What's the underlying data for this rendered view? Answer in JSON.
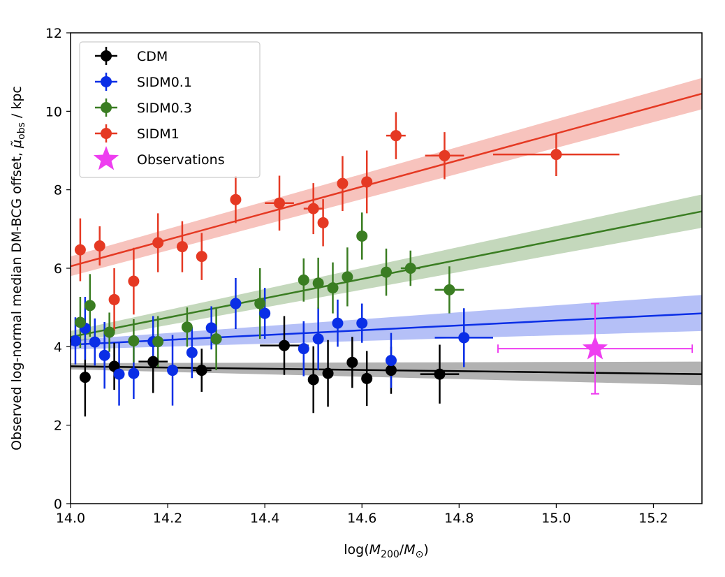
{
  "chart_data": {
    "type": "scatter",
    "xlabel": "log(M200/M⊙)",
    "ylabel": "Observed log-normal median DM-BCG offset, μ̃obs / kpc",
    "xlim": [
      14.0,
      15.3
    ],
    "ylim": [
      0,
      12
    ],
    "x_ticks": [
      "14.0",
      "14.2",
      "14.4",
      "14.6",
      "14.8",
      "15.0",
      "15.2"
    ],
    "y_ticks": [
      "0",
      "2",
      "4",
      "6",
      "8",
      "10",
      "12"
    ],
    "legend_position": "upper-left",
    "grid": false,
    "series": [
      {
        "name": "CDM",
        "color": "#000000",
        "fit_line": {
          "x": [
            14.0,
            15.3
          ],
          "y": [
            3.5,
            3.3
          ]
        },
        "fit_band": {
          "lower": [
            3.42,
            3.02
          ],
          "upper": [
            3.58,
            3.62
          ]
        },
        "points": [
          {
            "x": 14.03,
            "y": 3.22,
            "xerr": 0.01,
            "yerr": 1.0
          },
          {
            "x": 14.09,
            "y": 3.5,
            "xerr": 0.01,
            "yerr": 0.6
          },
          {
            "x": 14.17,
            "y": 3.62,
            "xerr": 0.03,
            "yerr": 0.8
          },
          {
            "x": 14.27,
            "y": 3.4,
            "xerr": 0.02,
            "yerr": 0.55
          },
          {
            "x": 14.44,
            "y": 4.03,
            "xerr": 0.05,
            "yerr": 0.75
          },
          {
            "x": 14.5,
            "y": 3.16,
            "xerr": 0.01,
            "yerr": 0.85
          },
          {
            "x": 14.53,
            "y": 3.32,
            "xerr": 0.01,
            "yerr": 0.85
          },
          {
            "x": 14.58,
            "y": 3.6,
            "xerr": 0.01,
            "yerr": 0.65
          },
          {
            "x": 14.61,
            "y": 3.19,
            "xerr": 0.01,
            "yerr": 0.7
          },
          {
            "x": 14.66,
            "y": 3.4,
            "xerr": 0.01,
            "yerr": 0.6
          },
          {
            "x": 14.76,
            "y": 3.3,
            "xerr": 0.04,
            "yerr": 0.75
          }
        ]
      },
      {
        "name": "SIDM0.1",
        "color": "#0a2ee6",
        "fit_line": {
          "x": [
            14.0,
            15.3
          ],
          "y": [
            4.05,
            4.85
          ]
        },
        "fit_band": {
          "lower": [
            3.93,
            4.4
          ],
          "upper": [
            4.17,
            5.32
          ]
        },
        "points": [
          {
            "x": 14.01,
            "y": 4.15,
            "xerr": 0.01,
            "yerr": 0.6
          },
          {
            "x": 14.03,
            "y": 4.47,
            "xerr": 0.01,
            "yerr": 0.8
          },
          {
            "x": 14.05,
            "y": 4.12,
            "xerr": 0.01,
            "yerr": 0.6
          },
          {
            "x": 14.07,
            "y": 3.78,
            "xerr": 0.01,
            "yerr": 0.85
          },
          {
            "x": 14.1,
            "y": 3.3,
            "xerr": 0.01,
            "yerr": 0.8
          },
          {
            "x": 14.13,
            "y": 3.32,
            "xerr": 0.01,
            "yerr": 0.65
          },
          {
            "x": 14.17,
            "y": 4.13,
            "xerr": 0.01,
            "yerr": 0.65
          },
          {
            "x": 14.21,
            "y": 3.4,
            "xerr": 0.01,
            "yerr": 0.9
          },
          {
            "x": 14.25,
            "y": 3.85,
            "xerr": 0.01,
            "yerr": 0.65
          },
          {
            "x": 14.29,
            "y": 4.48,
            "xerr": 0.01,
            "yerr": 0.55
          },
          {
            "x": 14.34,
            "y": 5.1,
            "xerr": 0.01,
            "yerr": 0.65
          },
          {
            "x": 14.4,
            "y": 4.85,
            "xerr": 0.01,
            "yerr": 0.65
          },
          {
            "x": 14.48,
            "y": 3.95,
            "xerr": 0.01,
            "yerr": 0.7
          },
          {
            "x": 14.51,
            "y": 4.2,
            "xerr": 0.01,
            "yerr": 0.8
          },
          {
            "x": 14.55,
            "y": 4.6,
            "xerr": 0.01,
            "yerr": 0.6
          },
          {
            "x": 14.6,
            "y": 4.6,
            "xerr": 0.01,
            "yerr": 0.5
          },
          {
            "x": 14.66,
            "y": 3.65,
            "xerr": 0.01,
            "yerr": 0.7
          },
          {
            "x": 14.81,
            "y": 4.23,
            "xerr": 0.06,
            "yerr": 0.75
          }
        ]
      },
      {
        "name": "SIDM0.3",
        "color": "#3a7d22",
        "fit_line": {
          "x": [
            14.0,
            15.3
          ],
          "y": [
            4.25,
            7.45
          ]
        },
        "fit_band": {
          "lower": [
            4.1,
            7.03
          ],
          "upper": [
            4.4,
            7.88
          ]
        },
        "points": [
          {
            "x": 14.02,
            "y": 4.62,
            "xerr": 0.01,
            "yerr": 0.65
          },
          {
            "x": 14.04,
            "y": 5.05,
            "xerr": 0.01,
            "yerr": 0.8
          },
          {
            "x": 14.08,
            "y": 4.37,
            "xerr": 0.01,
            "yerr": 0.5
          },
          {
            "x": 14.13,
            "y": 4.15,
            "xerr": 0.01,
            "yerr": 0.55
          },
          {
            "x": 14.18,
            "y": 4.13,
            "xerr": 0.01,
            "yerr": 0.65
          },
          {
            "x": 14.24,
            "y": 4.5,
            "xerr": 0.01,
            "yerr": 0.5
          },
          {
            "x": 14.3,
            "y": 4.2,
            "xerr": 0.01,
            "yerr": 0.8
          },
          {
            "x": 14.39,
            "y": 5.1,
            "xerr": 0.01,
            "yerr": 0.9
          },
          {
            "x": 14.48,
            "y": 5.7,
            "xerr": 0.01,
            "yerr": 0.55
          },
          {
            "x": 14.51,
            "y": 5.62,
            "xerr": 0.01,
            "yerr": 0.65
          },
          {
            "x": 14.54,
            "y": 5.5,
            "xerr": 0.01,
            "yerr": 0.65
          },
          {
            "x": 14.57,
            "y": 5.78,
            "xerr": 0.01,
            "yerr": 0.75
          },
          {
            "x": 14.6,
            "y": 6.82,
            "xerr": 0.01,
            "yerr": 0.6
          },
          {
            "x": 14.65,
            "y": 5.9,
            "xerr": 0.01,
            "yerr": 0.6
          },
          {
            "x": 14.7,
            "y": 6.0,
            "xerr": 0.02,
            "yerr": 0.45
          },
          {
            "x": 14.78,
            "y": 5.45,
            "xerr": 0.03,
            "yerr": 0.6
          }
        ]
      },
      {
        "name": "SIDM1",
        "color": "#e53923",
        "fit_line": {
          "x": [
            14.0,
            15.3
          ],
          "y": [
            6.05,
            10.45
          ]
        },
        "fit_band": {
          "lower": [
            5.8,
            10.05
          ],
          "upper": [
            6.3,
            10.85
          ]
        },
        "points": [
          {
            "x": 14.02,
            "y": 6.47,
            "xerr": 0.01,
            "yerr": 0.8
          },
          {
            "x": 14.06,
            "y": 6.57,
            "xerr": 0.01,
            "yerr": 0.5
          },
          {
            "x": 14.09,
            "y": 5.2,
            "xerr": 0.01,
            "yerr": 0.8
          },
          {
            "x": 14.13,
            "y": 5.67,
            "xerr": 0.01,
            "yerr": 0.85
          },
          {
            "x": 14.18,
            "y": 6.65,
            "xerr": 0.01,
            "yerr": 0.75
          },
          {
            "x": 14.23,
            "y": 6.55,
            "xerr": 0.01,
            "yerr": 0.65
          },
          {
            "x": 14.27,
            "y": 6.3,
            "xerr": 0.01,
            "yerr": 0.6
          },
          {
            "x": 14.34,
            "y": 7.75,
            "xerr": 0.01,
            "yerr": 0.6
          },
          {
            "x": 14.43,
            "y": 7.66,
            "xerr": 0.03,
            "yerr": 0.7
          },
          {
            "x": 14.5,
            "y": 7.52,
            "xerr": 0.02,
            "yerr": 0.65
          },
          {
            "x": 14.52,
            "y": 7.16,
            "xerr": 0.01,
            "yerr": 0.6
          },
          {
            "x": 14.56,
            "y": 8.16,
            "xerr": 0.01,
            "yerr": 0.7
          },
          {
            "x": 14.61,
            "y": 8.2,
            "xerr": 0.01,
            "yerr": 0.8
          },
          {
            "x": 14.67,
            "y": 9.38,
            "xerr": 0.02,
            "yerr": 0.6
          },
          {
            "x": 14.77,
            "y": 8.87,
            "xerr": 0.04,
            "yerr": 0.6
          },
          {
            "x": 15.0,
            "y": 8.9,
            "xerr": 0.13,
            "yerr": 0.55
          }
        ]
      }
    ],
    "observations": {
      "name": "Observations",
      "color": "#ee3ef0",
      "x": 15.08,
      "y": 3.95,
      "xerr": 0.2,
      "yerr": 1.15
    }
  }
}
